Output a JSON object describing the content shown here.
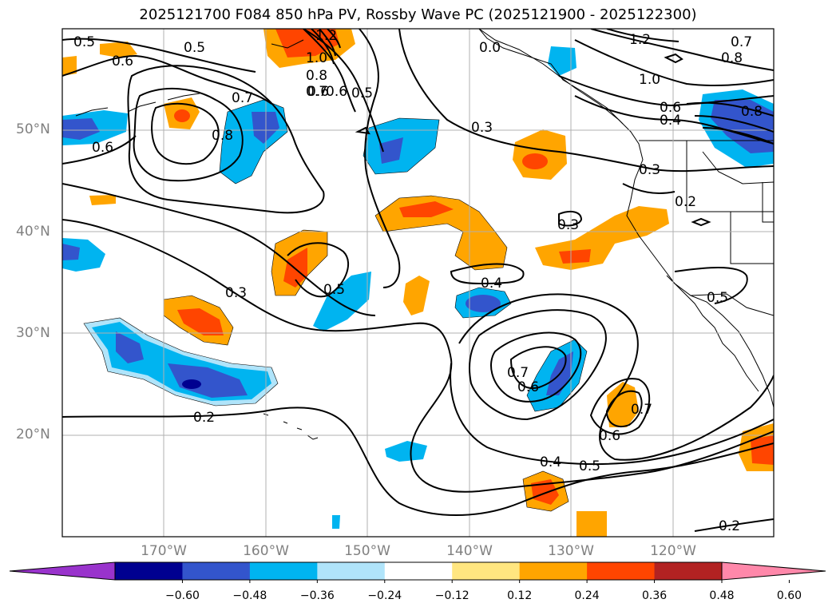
{
  "title": "2025121700 F084 850 hPa PV, Rossby Wave PC (2025121900 - 2025122300)",
  "lat_labels": [
    "50°N",
    "40°N",
    "30°N",
    "20°N"
  ],
  "lon_labels": [
    "170°W",
    "160°W",
    "150°W",
    "140°W",
    "130°W",
    "120°W"
  ],
  "contour_labels": [
    "0.5",
    "0.6",
    "0.5",
    "0.6",
    "0.7",
    "0.8",
    "0.6",
    "1.2",
    "1.0",
    "0.8",
    "0.7",
    "0.6",
    "0.5",
    "0.3",
    "1.2",
    "0.7",
    "0.8",
    "1.0",
    "0.6",
    "0.4",
    "0.8",
    "0.3",
    "0.2",
    "0.3",
    "0.4",
    "0.5",
    "0.5",
    "0.3",
    "0.2",
    "0.7",
    "0.6",
    "0.7",
    "0.6",
    "0.4",
    "0.5",
    "0.2",
    "0.0"
  ],
  "colorbar": {
    "tick_labels": [
      "−0.60",
      "−0.48",
      "−0.36",
      "−0.24",
      "−0.12",
      "0.12",
      "0.24",
      "0.36",
      "0.48",
      "0.60"
    ],
    "colors": [
      "#9933cc",
      "#000090",
      "#3355cc",
      "#00b4f0",
      "#b0e4fa",
      "#ffffff",
      "#ffe680",
      "#ffa500",
      "#ff4500",
      "#b22222",
      "#ff88aa"
    ]
  }
}
